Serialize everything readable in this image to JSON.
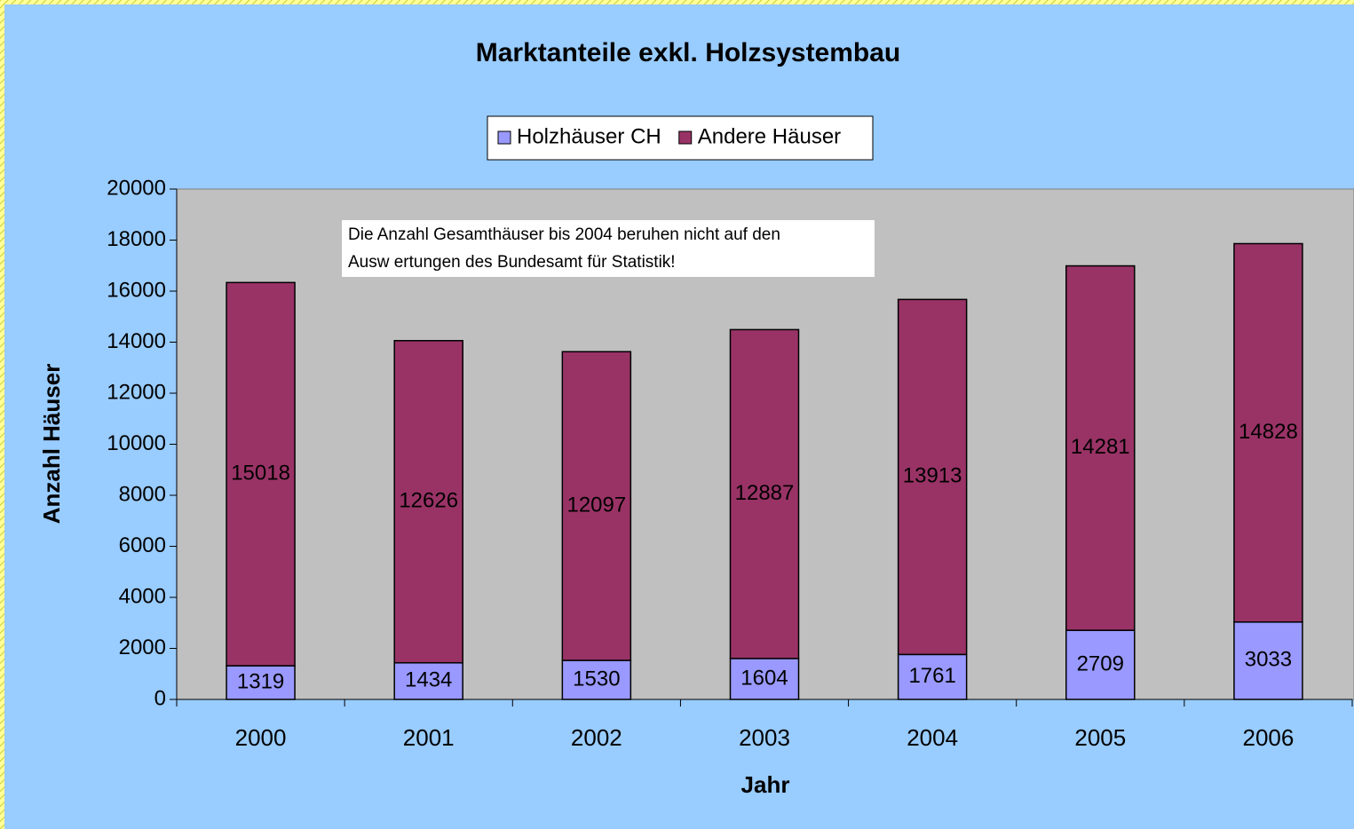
{
  "chart_data": {
    "type": "stacked_bar",
    "title": "Marktanteile exkl. Holzsystembau",
    "xlabel": "Jahr",
    "ylabel": "Anzahl Häuser",
    "annotation": [
      "Die Anzahl Gesamthäuser bis 2004 beruhen nicht auf den",
      "Ausw ertungen des Bundesamt für Statistik!"
    ],
    "categories": [
      "2000",
      "2001",
      "2002",
      "2003",
      "2004",
      "2005",
      "2006"
    ],
    "series": [
      {
        "name": "Holzhäuser CH",
        "color": "#9999ff",
        "values": [
          1319,
          1434,
          1530,
          1604,
          1761,
          2709,
          3033
        ]
      },
      {
        "name": "Andere Häuser",
        "color": "#993366",
        "values": [
          15018,
          12626,
          12097,
          12887,
          13913,
          14281,
          14828
        ]
      }
    ],
    "ylim": [
      0,
      20000
    ],
    "yticks": [
      0,
      2000,
      4000,
      6000,
      8000,
      10000,
      12000,
      14000,
      16000,
      18000,
      20000
    ],
    "legend": "top"
  }
}
